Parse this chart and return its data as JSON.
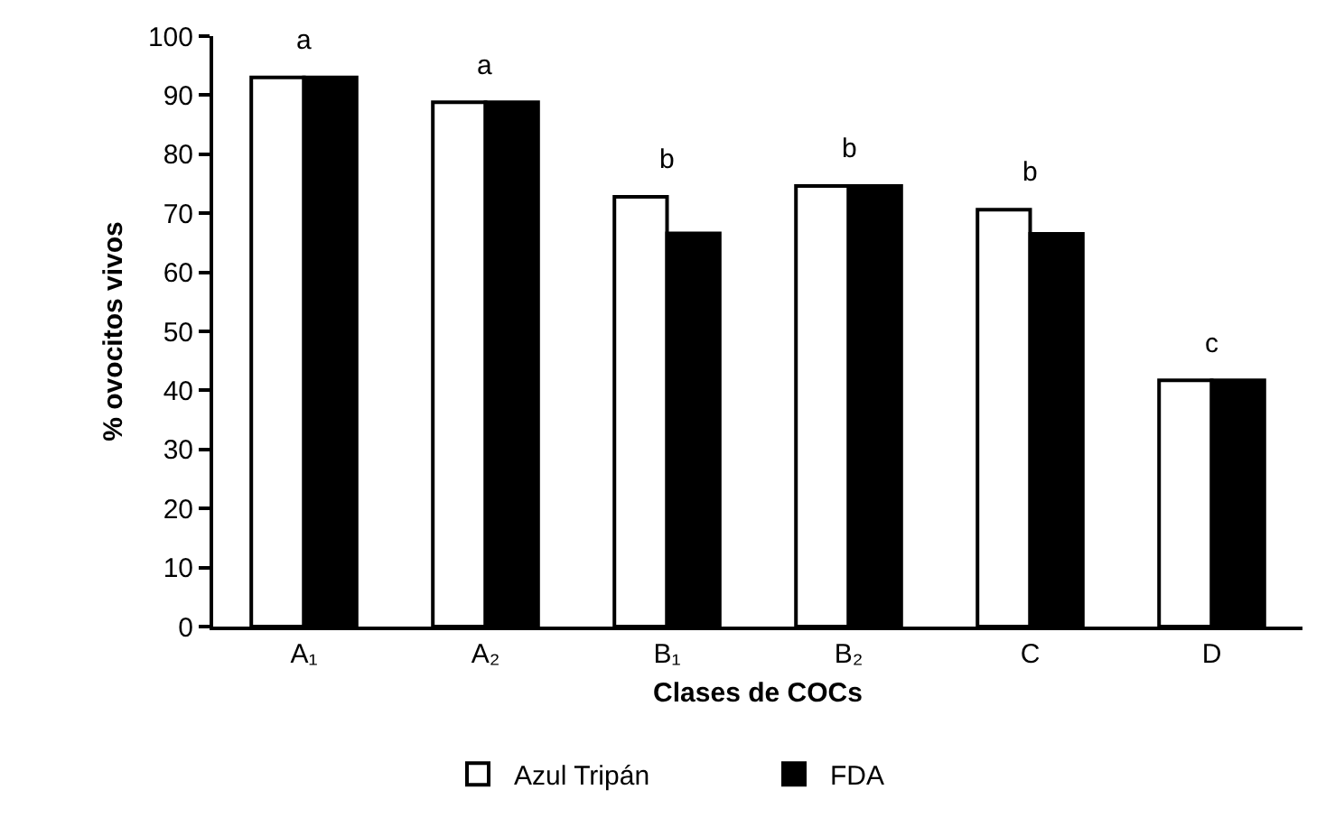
{
  "chart_data": {
    "type": "bar",
    "xlabel": "Clases de COCs",
    "ylabel": "% ovocitos vivos",
    "categories": [
      "A₁",
      "A₂",
      "B₁",
      "B₂",
      "C",
      "D"
    ],
    "series": [
      {
        "name": "Azul Tripán",
        "color": "#ffffff",
        "values": [
          93,
          88.8,
          72.8,
          74.6,
          70.6,
          41.7
        ]
      },
      {
        "name": "FDA",
        "color": "#000000",
        "values": [
          93,
          88.8,
          66.6,
          74.6,
          66.5,
          41.7
        ]
      }
    ],
    "ylim": [
      0,
      100
    ],
    "yticks": [
      0,
      10,
      20,
      30,
      40,
      50,
      60,
      70,
      80,
      90,
      100
    ],
    "grid": false,
    "legend": "bottom",
    "annotations": [
      "a",
      "a",
      "b",
      "b",
      "b",
      "c"
    ]
  }
}
